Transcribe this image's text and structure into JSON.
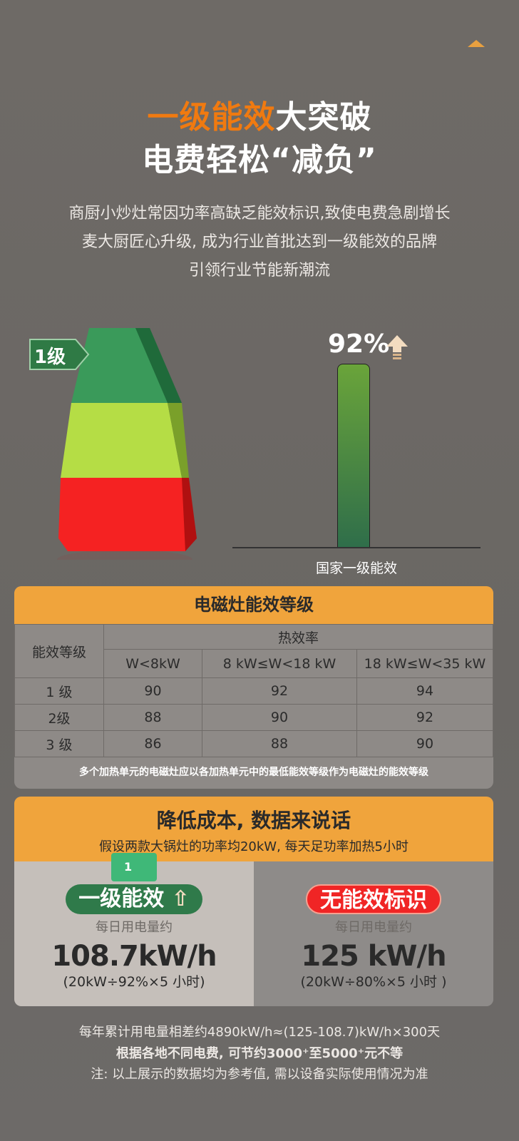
{
  "header": {
    "title_highlight": "一级能效",
    "title_rest": "大突破",
    "title_line2": "电费轻松“减负”",
    "description": [
      "商厨小炒灶常因功率高缺乏能效标识,致使电费急剧增长",
      "麦大厨匠心升级, 成为行业首批达到一级能效的品牌",
      "引领行业节能新潮流"
    ]
  },
  "graphic": {
    "level_label": "1级",
    "percent": "92%",
    "bar_value": 92,
    "caption": "国家一级能效",
    "colors": {
      "level1": "#3a9a5a",
      "level2": "#b5dd45",
      "level3": "#f52222"
    }
  },
  "table": {
    "title": "电磁灶能效等级",
    "col_group": "热效率",
    "row_header": "能效等级",
    "columns": [
      "W<8kW",
      "8 kW≤W<18 kW",
      "18 kW≤W<35 kW"
    ],
    "rows": [
      {
        "level": "1 级",
        "values": [
          "90",
          "92",
          "94"
        ]
      },
      {
        "level": "2级",
        "values": [
          "88",
          "90",
          "92"
        ]
      },
      {
        "level": "3 级",
        "values": [
          "86",
          "88",
          "90"
        ]
      }
    ],
    "note": "多个加热单元的电磁灶应以各加热单元中的最低能效等级作为电磁灶的能效等级"
  },
  "compare": {
    "title": "降低成本, 数据来说话",
    "subtitle": "假设两款大锅灶的功率均20kW, 每天足功率加热5小时",
    "badge_number": "1",
    "left": {
      "label": "一级能效",
      "sub": "每日用电量约",
      "value": "108.7kW/h",
      "formula": "(20kW÷92%×5 小时)"
    },
    "right": {
      "label": "无能效标识",
      "sub": "每日用电量约",
      "value": "125 kW/h",
      "formula": "(20kW÷80%×5 小时 )"
    }
  },
  "footer": {
    "line1": "每年累计用电量相差约4890kW/h≈(125-108.7)kW/h×300天",
    "line2": "根据各地不同电费, 可节约3000⁺至5000⁺元不等",
    "line3": "注: 以上展示的数据均为参考值, 需以设备实际使用情况为准"
  }
}
